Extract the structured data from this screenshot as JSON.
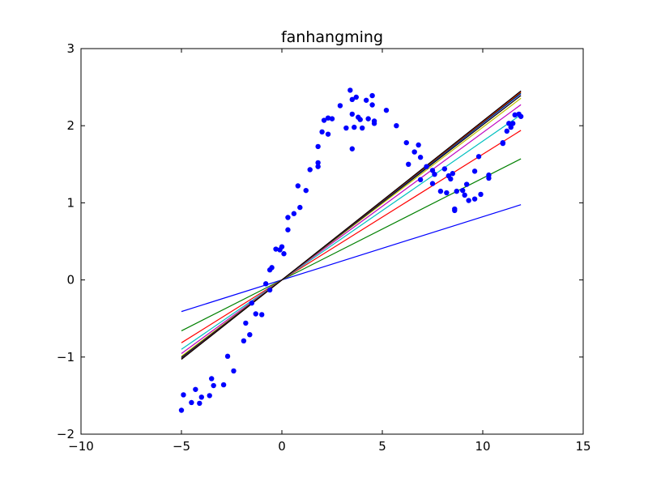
{
  "chart_data": {
    "type": "scatter",
    "title": "fanhangming",
    "xlabel": "",
    "ylabel": "",
    "xlim": [
      -10,
      15
    ],
    "ylim": [
      -2,
      3
    ],
    "x_ticks": [
      -10,
      -5,
      0,
      5,
      10,
      15
    ],
    "y_ticks": [
      -2,
      -1,
      0,
      1,
      2,
      3
    ],
    "x_tick_labels": [
      "−10",
      "−5",
      "0",
      "5",
      "10",
      "15"
    ],
    "y_tick_labels": [
      "−2",
      "−1",
      "0",
      "1",
      "2",
      "3"
    ],
    "grid": false,
    "legend": "none",
    "scatter_series": {
      "color": "#0000ff",
      "points": [
        [
          -5.0,
          -1.69
        ],
        [
          -4.9,
          -1.49
        ],
        [
          -4.5,
          -1.59
        ],
        [
          -4.3,
          -1.42
        ],
        [
          -4.1,
          -1.6
        ],
        [
          -4.0,
          -1.52
        ],
        [
          -3.6,
          -1.5
        ],
        [
          -3.5,
          -1.28
        ],
        [
          -3.4,
          -1.37
        ],
        [
          -2.9,
          -1.36
        ],
        [
          -2.7,
          -0.99
        ],
        [
          -2.4,
          -1.18
        ],
        [
          -1.9,
          -0.79
        ],
        [
          -1.8,
          -0.56
        ],
        [
          -1.6,
          -0.71
        ],
        [
          -1.5,
          -0.3
        ],
        [
          -1.3,
          -0.44
        ],
        [
          -1.0,
          -0.45
        ],
        [
          -0.8,
          -0.05
        ],
        [
          -0.6,
          -0.13
        ],
        [
          -0.6,
          0.13
        ],
        [
          -0.5,
          0.16
        ],
        [
          -0.3,
          0.4
        ],
        [
          -0.1,
          0.39
        ],
        [
          0.0,
          0.43
        ],
        [
          0.1,
          0.34
        ],
        [
          0.3,
          0.65
        ],
        [
          0.3,
          0.81
        ],
        [
          0.6,
          0.86
        ],
        [
          0.8,
          1.22
        ],
        [
          0.9,
          0.94
        ],
        [
          1.2,
          1.16
        ],
        [
          1.4,
          1.43
        ],
        [
          1.8,
          1.47
        ],
        [
          1.8,
          1.52
        ],
        [
          1.8,
          1.73
        ],
        [
          2.0,
          1.92
        ],
        [
          2.1,
          2.07
        ],
        [
          2.3,
          1.89
        ],
        [
          2.3,
          2.1
        ],
        [
          2.5,
          2.09
        ],
        [
          2.9,
          2.26
        ],
        [
          3.2,
          1.97
        ],
        [
          3.4,
          2.46
        ],
        [
          3.5,
          2.34
        ],
        [
          3.5,
          2.15
        ],
        [
          3.5,
          1.7
        ],
        [
          3.6,
          1.98
        ],
        [
          3.7,
          2.37
        ],
        [
          3.8,
          2.11
        ],
        [
          3.9,
          2.08
        ],
        [
          4.0,
          1.97
        ],
        [
          4.2,
          2.33
        ],
        [
          4.3,
          2.09
        ],
        [
          4.5,
          2.27
        ],
        [
          4.5,
          2.39
        ],
        [
          4.6,
          2.03
        ],
        [
          4.6,
          2.06
        ],
        [
          5.2,
          2.2
        ],
        [
          5.7,
          2.0
        ],
        [
          6.2,
          1.78
        ],
        [
          6.3,
          1.5
        ],
        [
          6.6,
          1.66
        ],
        [
          6.8,
          1.75
        ],
        [
          6.9,
          1.59
        ],
        [
          6.9,
          1.3
        ],
        [
          7.2,
          1.47
        ],
        [
          7.5,
          1.25
        ],
        [
          7.5,
          1.42
        ],
        [
          7.6,
          1.37
        ],
        [
          7.9,
          1.15
        ],
        [
          8.1,
          1.44
        ],
        [
          8.2,
          1.13
        ],
        [
          8.3,
          1.35
        ],
        [
          8.4,
          1.31
        ],
        [
          8.5,
          1.38
        ],
        [
          8.6,
          0.92
        ],
        [
          8.7,
          1.15
        ],
        [
          8.6,
          0.9
        ],
        [
          9.0,
          1.16
        ],
        [
          9.1,
          1.1
        ],
        [
          9.2,
          1.24
        ],
        [
          9.3,
          1.03
        ],
        [
          9.6,
          1.41
        ],
        [
          9.6,
          1.05
        ],
        [
          9.8,
          1.6
        ],
        [
          9.9,
          1.11
        ],
        [
          10.3,
          1.36
        ],
        [
          10.3,
          1.32
        ],
        [
          11.0,
          1.78
        ],
        [
          11.0,
          1.77
        ],
        [
          11.2,
          1.93
        ],
        [
          11.3,
          2.03
        ],
        [
          11.4,
          1.98
        ],
        [
          11.5,
          2.03
        ],
        [
          11.6,
          2.14
        ],
        [
          11.8,
          2.15
        ],
        [
          11.9,
          2.12
        ]
      ]
    },
    "fit_lines": [
      {
        "color": "#0000ff",
        "slope": 0.082
      },
      {
        "color": "#008000",
        "slope": 0.132
      },
      {
        "color": "#ff0000",
        "slope": 0.163
      },
      {
        "color": "#00bfbf",
        "slope": 0.18
      },
      {
        "color": "#bf00bf",
        "slope": 0.191
      },
      {
        "color": "#bfbf00",
        "slope": 0.198
      },
      {
        "color": "#000000",
        "slope": 0.201
      },
      {
        "color": "#0000ff",
        "slope": 0.203
      },
      {
        "color": "#008000",
        "slope": 0.204
      },
      {
        "color": "#ff0000",
        "slope": 0.205
      },
      {
        "color": "#000000",
        "slope": 0.206
      }
    ],
    "fit_x_range": [
      -5,
      11.9
    ]
  }
}
